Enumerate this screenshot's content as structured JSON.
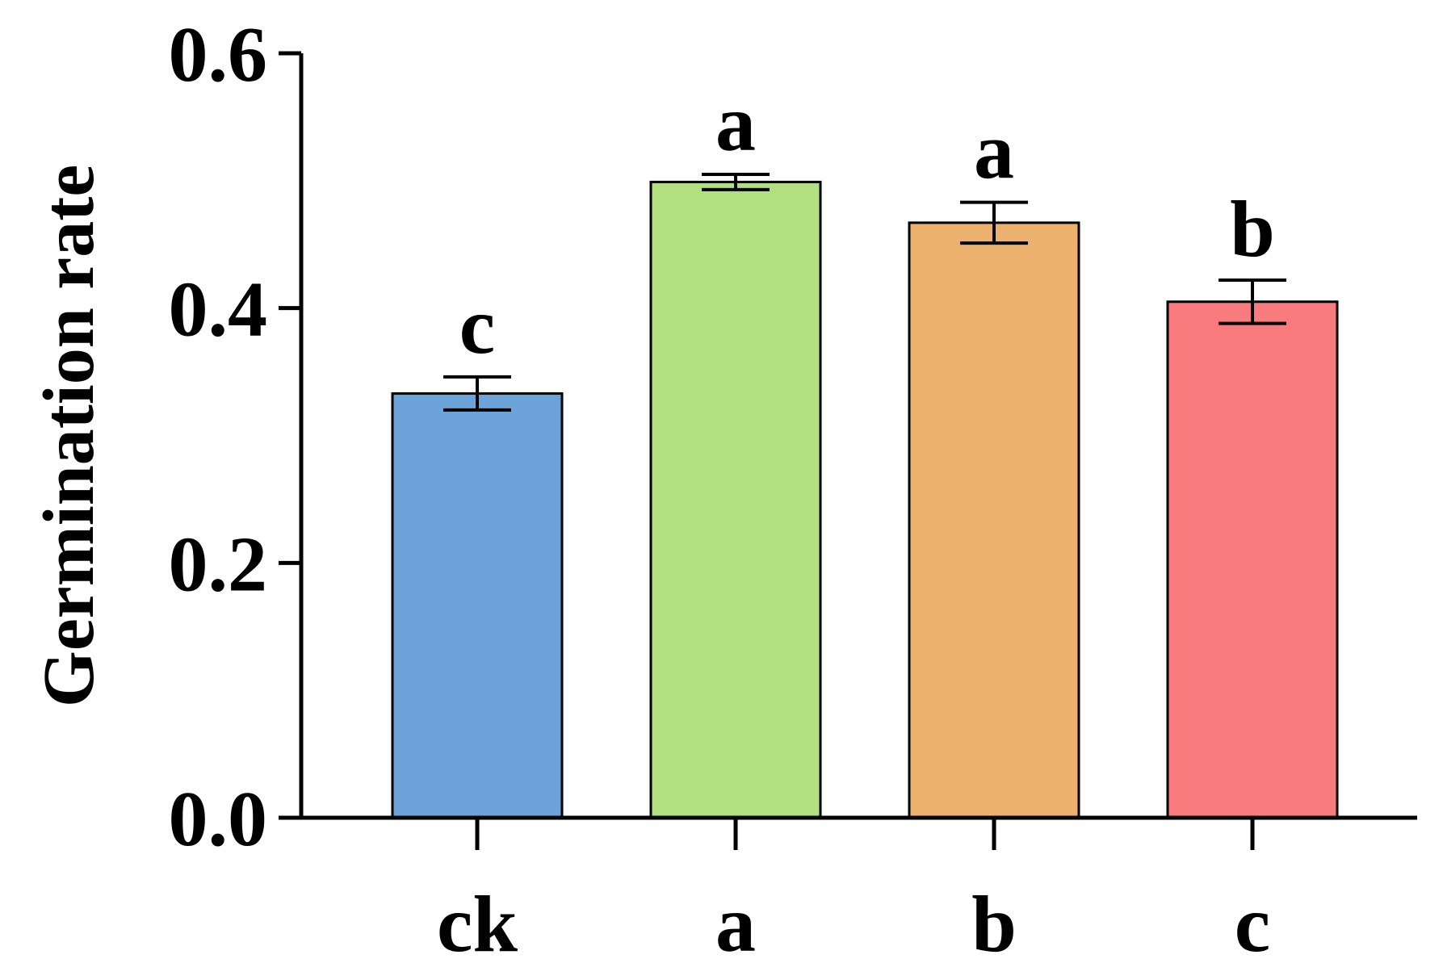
{
  "chart_data": {
    "type": "bar",
    "title": "",
    "xlabel": "",
    "ylabel": "Germination rate",
    "ylim": [
      0,
      0.6
    ],
    "yticks": [
      {
        "value": 0.0,
        "label": "0.0"
      },
      {
        "value": 0.2,
        "label": "0.2"
      },
      {
        "value": 0.4,
        "label": "0.4"
      },
      {
        "value": 0.6,
        "label": "0.6"
      }
    ],
    "categories": [
      "ck",
      "a",
      "b",
      "c"
    ],
    "values": [
      0.333,
      0.499,
      0.467,
      0.405
    ],
    "errors": [
      0.013,
      0.006,
      0.016,
      0.017
    ],
    "significance": [
      "c",
      "a",
      "a",
      "b"
    ],
    "colors": [
      "#6ca3d8",
      "#b2e07f",
      "#ecb16c",
      "#f97b7e"
    ],
    "grid": false,
    "legend": false
  }
}
